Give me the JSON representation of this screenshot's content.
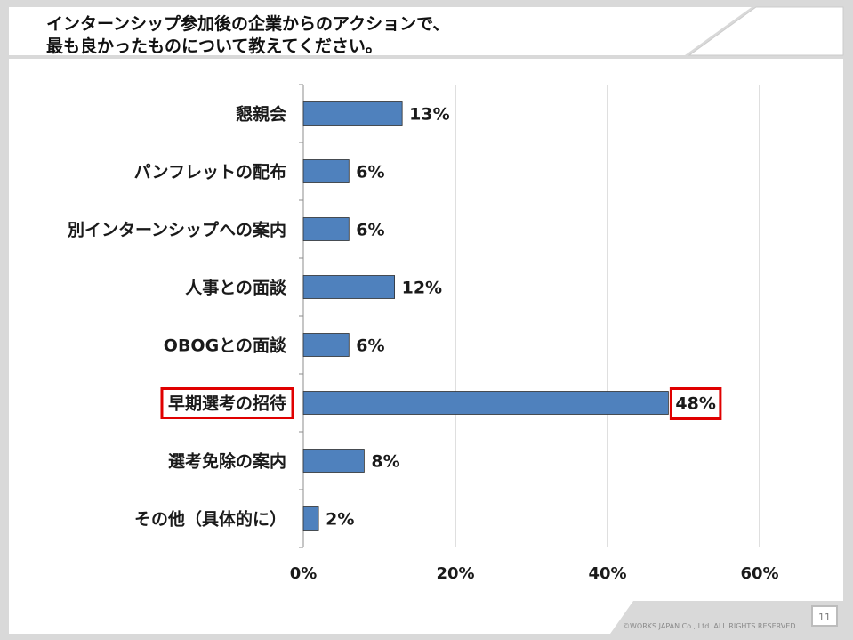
{
  "slide": {
    "title_lines": [
      "インターンシップ参加後の企業からのアクションで、",
      "最も良かったものについて教えてください。"
    ],
    "page_number": "11",
    "copyright": "©WORKS JAPAN Co., Ltd. ALL RIGHTS RESERVED."
  },
  "colors": {
    "bar": "#4f81bd",
    "highlight": "#e00000",
    "gridline": "#bfbfbf"
  },
  "chart_data": {
    "type": "bar",
    "orientation": "horizontal",
    "categories": [
      "懇親会",
      "パンフレットの配布",
      "別インターンシップへの案内",
      "人事との面談",
      "OBOGとの面談",
      "早期選考の招待",
      "選考免除の案内",
      "その他（具体的に）"
    ],
    "values": [
      13,
      6,
      6,
      12,
      6,
      48,
      8,
      2
    ],
    "value_labels": [
      "13%",
      "6%",
      "6%",
      "12%",
      "6%",
      "48%",
      "8%",
      "2%"
    ],
    "xlim": [
      0,
      60
    ],
    "x_ticks": [
      0,
      20,
      40,
      60
    ],
    "x_tick_labels": [
      "0%",
      "20%",
      "40%",
      "60%"
    ],
    "grid": true,
    "highlighted_category_index": 5
  }
}
